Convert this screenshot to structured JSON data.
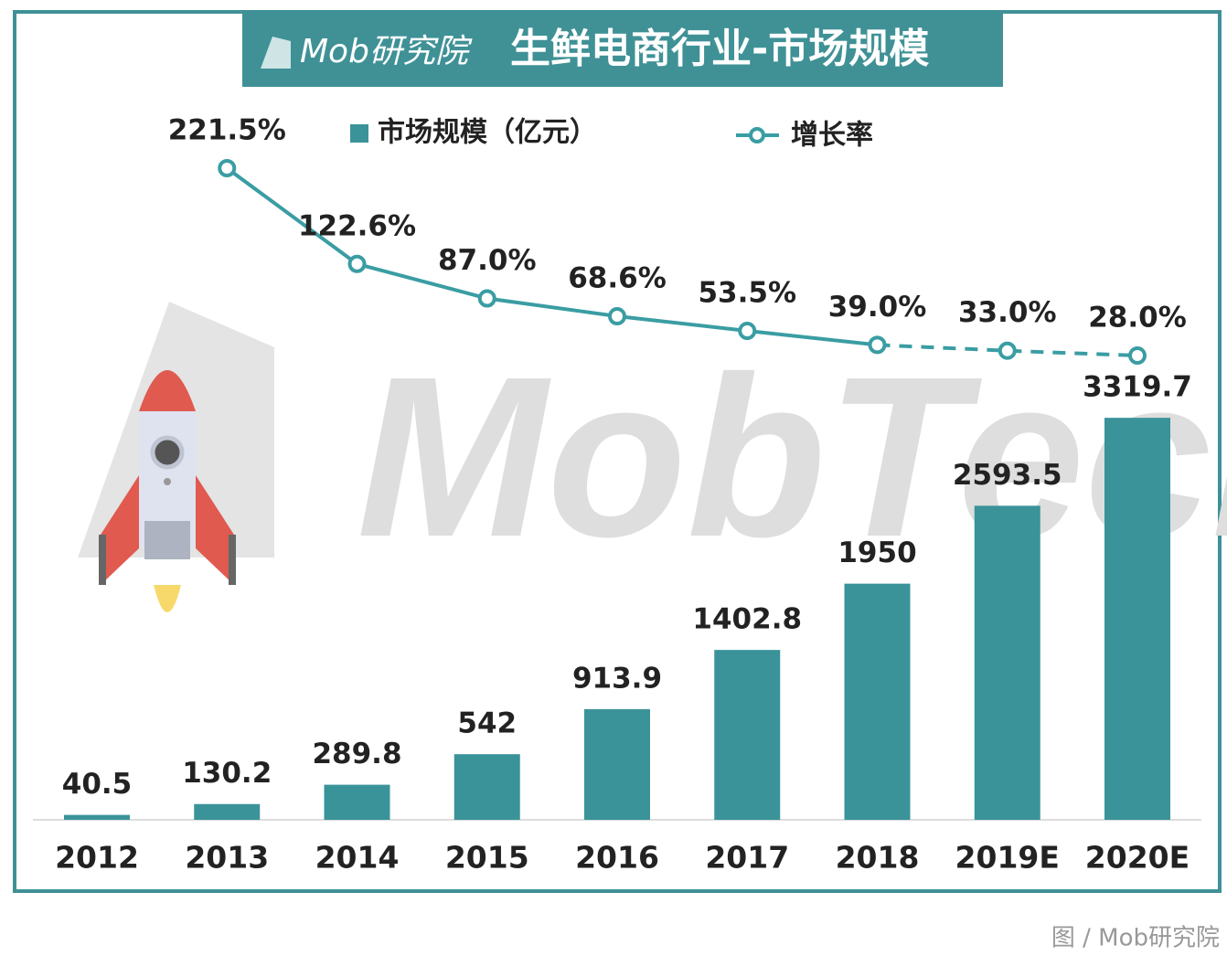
{
  "chart_data": {
    "type": "bar_line",
    "brand": "Mob研究院",
    "title": "生鲜电商行业-市场规模",
    "watermark": "MobTech",
    "caption": "图 / Mob研究院",
    "categories": [
      "2012",
      "2013",
      "2014",
      "2015",
      "2016",
      "2017",
      "2018",
      "2019E",
      "2020E"
    ],
    "ylim": [
      0,
      4000
    ],
    "y2lim": [
      0,
      250
    ],
    "series": [
      {
        "name": "市场规模（亿元）",
        "type": "bar",
        "color": "#3a9399",
        "values": [
          40.5,
          130.2,
          289.8,
          542,
          913.9,
          1402.8,
          1950,
          2593.5,
          3319.7
        ]
      },
      {
        "name": "增长率",
        "type": "line",
        "axis": "y2",
        "color": "#3a9da3",
        "values": [
          null,
          221.5,
          122.6,
          87,
          68.6,
          53.5,
          39,
          33,
          28
        ],
        "value_labels": [
          null,
          "221.5%",
          "122.6%",
          "87.0%",
          "68.6%",
          "53.5%",
          "39.0%",
          "33.0%",
          "28.0%"
        ]
      }
    ]
  }
}
